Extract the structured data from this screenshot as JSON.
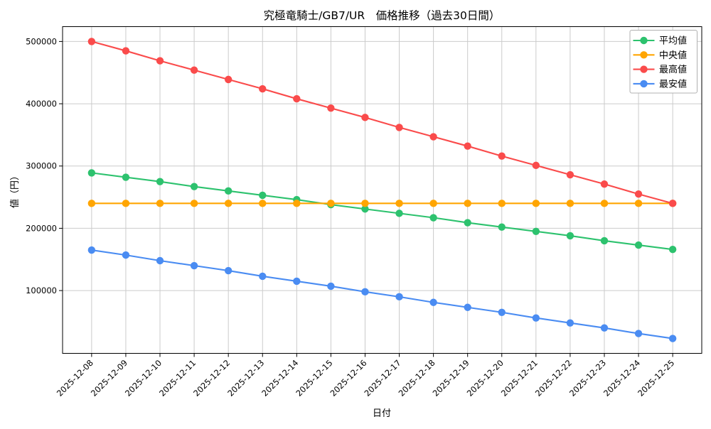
{
  "chart_data": {
    "type": "line",
    "title": "究極竜騎士/GB7/UR　価格推移（過去30日間）",
    "xlabel": "日付",
    "ylabel": "値（円）",
    "x": [
      "2025-12-08",
      "2025-12-09",
      "2025-12-10",
      "2025-12-11",
      "2025-12-12",
      "2025-12-13",
      "2025-12-14",
      "2025-12-15",
      "2025-12-16",
      "2025-12-17",
      "2025-12-18",
      "2025-12-19",
      "2025-12-20",
      "2025-12-21",
      "2025-12-22",
      "2025-12-23",
      "2025-12-24",
      "2025-12-25"
    ],
    "series": [
      {
        "id": "average",
        "name": "平均値",
        "color": "#2dc26e",
        "values": [
          289000,
          282000,
          275000,
          267000,
          260000,
          253000,
          246000,
          238000,
          231000,
          224000,
          217000,
          209000,
          202000,
          195000,
          188000,
          180000,
          173000,
          166000
        ]
      },
      {
        "id": "median",
        "name": "中央値",
        "color": "#ffa502",
        "values": [
          240000,
          240000,
          240000,
          240000,
          240000,
          240000,
          240000,
          240000,
          240000,
          240000,
          240000,
          240000,
          240000,
          240000,
          240000,
          240000,
          240000,
          240000
        ]
      },
      {
        "id": "highest",
        "name": "最高値",
        "color": "#fa4b4b",
        "values": [
          500000,
          485000,
          469000,
          454000,
          439000,
          424000,
          408000,
          393000,
          378000,
          362000,
          347000,
          332000,
          316000,
          301000,
          286000,
          271000,
          255000,
          240000
        ]
      },
      {
        "id": "lowest",
        "name": "最安値",
        "color": "#4a8cf2",
        "values": [
          165000,
          157000,
          148000,
          140000,
          132000,
          123000,
          115000,
          107000,
          98000,
          90000,
          81000,
          73000,
          65000,
          56000,
          48000,
          40000,
          31000,
          23000
        ]
      }
    ],
    "yticks": [
      100000,
      200000,
      300000,
      400000,
      500000
    ],
    "ylim": [
      -850,
      523850
    ],
    "xlim": [
      -0.85,
      17.85
    ],
    "grid": true,
    "legend_position": "upper right"
  },
  "colors": {
    "background": "#ffffff",
    "grid": "#cbcbcb",
    "axis": "#000000",
    "text": "#000000",
    "legend_border": "#b0b0b0",
    "legend_bg": "#ffffff"
  }
}
